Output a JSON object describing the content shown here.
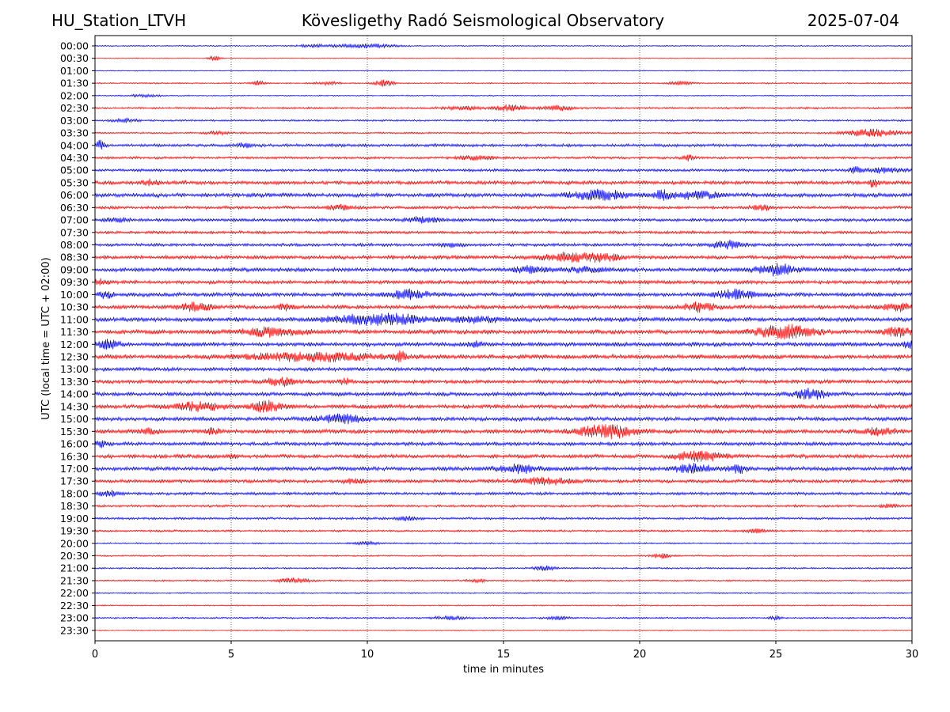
{
  "header": {
    "station": "HU_Station_LTVH",
    "title": "Kövesligethy Radó Seismological Observatory",
    "date": "2025-07-04"
  },
  "chart_data": {
    "type": "line",
    "subtype": "helicorder",
    "xlabel": "time in minutes",
    "ylabel": "UTC (local time = UTC + 02:00)",
    "xlim": [
      0,
      30
    ],
    "xticks": [
      0,
      5,
      10,
      15,
      20,
      25,
      30
    ],
    "vertical_gridlines": [
      5,
      10,
      15,
      20,
      25
    ],
    "grid": "vertical dotted",
    "colors": [
      "#0000ff",
      "#ff0000"
    ],
    "rows": [
      {
        "label": "00:00",
        "noise": 0.5,
        "bursts": [
          [
            10,
            1.5,
            2.5
          ],
          [
            8,
            1,
            1.5
          ]
        ]
      },
      {
        "label": "00:30",
        "noise": 0.3,
        "bursts": [
          [
            4.4,
            0.3,
            3
          ]
        ]
      },
      {
        "label": "01:00",
        "noise": 0.3,
        "bursts": []
      },
      {
        "label": "01:30",
        "noise": 0.6,
        "bursts": [
          [
            6,
            0.3,
            3
          ],
          [
            8.5,
            0.6,
            2
          ],
          [
            10.6,
            0.5,
            4
          ],
          [
            21.5,
            0.6,
            2
          ]
        ]
      },
      {
        "label": "02:00",
        "noise": 0.5,
        "bursts": [
          [
            1.8,
            0.8,
            1.5
          ]
        ]
      },
      {
        "label": "02:30",
        "noise": 1,
        "bursts": [
          [
            15.3,
            0.8,
            4
          ],
          [
            17,
            0.8,
            3
          ],
          [
            13.5,
            1,
            2
          ]
        ]
      },
      {
        "label": "03:00",
        "noise": 0.9,
        "bursts": [
          [
            1.1,
            0.6,
            2.5
          ]
        ]
      },
      {
        "label": "03:30",
        "noise": 0.9,
        "bursts": [
          [
            28.6,
            1.5,
            4.5
          ],
          [
            4.5,
            0.6,
            2
          ]
        ]
      },
      {
        "label": "04:00",
        "noise": 1.8,
        "bursts": [
          [
            0.2,
            0.2,
            6
          ],
          [
            5.5,
            0.3,
            3
          ]
        ]
      },
      {
        "label": "04:30",
        "noise": 1.3,
        "bursts": [
          [
            21.8,
            0.3,
            4
          ],
          [
            14,
            1,
            2.5
          ]
        ]
      },
      {
        "label": "05:00",
        "noise": 1.6,
        "bursts": [
          [
            27.9,
            0.3,
            4
          ],
          [
            29,
            1,
            3
          ]
        ]
      },
      {
        "label": "05:30",
        "noise": 2.2,
        "bursts": [
          [
            28.6,
            0.2,
            7
          ],
          [
            2,
            0.5,
            3
          ]
        ]
      },
      {
        "label": "06:00",
        "noise": 2.5,
        "bursts": [
          [
            18.5,
            1.5,
            5.5
          ],
          [
            20.8,
            0.3,
            5.5
          ],
          [
            22,
            1.5,
            4
          ]
        ]
      },
      {
        "label": "06:30",
        "noise": 1.8,
        "bursts": [
          [
            24.5,
            0.5,
            3
          ],
          [
            9,
            0.8,
            2.5
          ]
        ]
      },
      {
        "label": "07:00",
        "noise": 1.8,
        "bursts": [
          [
            0.8,
            0.6,
            3
          ],
          [
            12,
            1,
            3
          ]
        ]
      },
      {
        "label": "07:30",
        "noise": 1.7,
        "bursts": []
      },
      {
        "label": "08:00",
        "noise": 1.8,
        "bursts": [
          [
            23.2,
            0.8,
            5
          ],
          [
            13,
            0.5,
            2.5
          ]
        ]
      },
      {
        "label": "08:30",
        "noise": 2.2,
        "bursts": [
          [
            17.5,
            1.5,
            5
          ],
          [
            18.7,
            0.8,
            3.5
          ]
        ]
      },
      {
        "label": "09:00",
        "noise": 2.4,
        "bursts": [
          [
            25,
            1,
            7
          ],
          [
            16,
            1,
            3.5
          ],
          [
            18,
            1,
            3
          ]
        ]
      },
      {
        "label": "09:30",
        "noise": 2.2,
        "bursts": [
          [
            0.2,
            0.4,
            3.5
          ]
        ]
      },
      {
        "label": "10:00",
        "noise": 2.4,
        "bursts": [
          [
            11.5,
            1,
            5.5
          ],
          [
            23.5,
            1,
            5.5
          ],
          [
            0.4,
            0.4,
            3.5
          ]
        ]
      },
      {
        "label": "10:30",
        "noise": 2.4,
        "bursts": [
          [
            3.7,
            0.8,
            5
          ],
          [
            22.2,
            0.8,
            5.5
          ],
          [
            29.5,
            0.8,
            4.5
          ],
          [
            7,
            0.4,
            4
          ]
        ]
      },
      {
        "label": "11:00",
        "noise": 2.6,
        "bursts": [
          [
            11,
            1.5,
            6
          ],
          [
            9.3,
            1.5,
            4
          ],
          [
            14,
            1.5,
            3
          ]
        ]
      },
      {
        "label": "11:30",
        "noise": 2.7,
        "bursts": [
          [
            25.3,
            1.5,
            8
          ],
          [
            6.5,
            1.5,
            5
          ],
          [
            29.5,
            0.8,
            4.5
          ]
        ]
      },
      {
        "label": "12:00",
        "noise": 2.5,
        "bursts": [
          [
            0.5,
            0.6,
            5
          ],
          [
            14,
            0.5,
            3
          ],
          [
            29.9,
            0.3,
            4
          ]
        ]
      },
      {
        "label": "12:30",
        "noise": 2.7,
        "bursts": [
          [
            8,
            3.5,
            4.5
          ],
          [
            11.2,
            0.3,
            5
          ]
        ]
      },
      {
        "label": "13:00",
        "noise": 2.2,
        "bursts": []
      },
      {
        "label": "13:30",
        "noise": 2.2,
        "bursts": [
          [
            6.8,
            0.8,
            5
          ],
          [
            9.2,
            0.3,
            3.5
          ]
        ]
      },
      {
        "label": "14:00",
        "noise": 2.4,
        "bursts": [
          [
            26.3,
            0.8,
            6.5
          ]
        ]
      },
      {
        "label": "14:30",
        "noise": 2.6,
        "bursts": [
          [
            6.3,
            0.8,
            6
          ],
          [
            3.8,
            1.3,
            4.5
          ]
        ]
      },
      {
        "label": "15:00",
        "noise": 2.4,
        "bursts": [
          [
            9,
            1.2,
            5.5
          ]
        ]
      },
      {
        "label": "15:30",
        "noise": 2.5,
        "bursts": [
          [
            18.8,
            1.5,
            8
          ],
          [
            4.3,
            0.5,
            3.5
          ],
          [
            2,
            0.5,
            3
          ],
          [
            28.8,
            0.8,
            4.5
          ]
        ]
      },
      {
        "label": "16:00",
        "noise": 2.2,
        "bursts": [
          [
            0.2,
            0.3,
            3
          ]
        ]
      },
      {
        "label": "16:30",
        "noise": 2.3,
        "bursts": [
          [
            22.2,
            1.2,
            6
          ],
          [
            5,
            0.2,
            3
          ]
        ]
      },
      {
        "label": "17:00",
        "noise": 2.5,
        "bursts": [
          [
            15.5,
            1,
            5
          ],
          [
            22,
            1,
            5
          ],
          [
            23.6,
            0.5,
            5
          ]
        ]
      },
      {
        "label": "17:30",
        "noise": 2,
        "bursts": [
          [
            16.5,
            1.5,
            4
          ],
          [
            9.5,
            0.5,
            2.5
          ]
        ]
      },
      {
        "label": "18:00",
        "noise": 1.7,
        "bursts": [
          [
            0.5,
            0.5,
            3.5
          ]
        ]
      },
      {
        "label": "18:30",
        "noise": 1.3,
        "bursts": [
          [
            29.2,
            0.5,
            2.5
          ]
        ]
      },
      {
        "label": "19:00",
        "noise": 1.3,
        "bursts": [
          [
            11.5,
            0.5,
            2.5
          ]
        ]
      },
      {
        "label": "19:30",
        "noise": 1.1,
        "bursts": [
          [
            24.3,
            0.5,
            2.5
          ]
        ]
      },
      {
        "label": "20:00",
        "noise": 0.7,
        "bursts": [
          [
            10,
            0.6,
            2
          ]
        ]
      },
      {
        "label": "20:30",
        "noise": 0.7,
        "bursts": [
          [
            20.8,
            0.5,
            3
          ]
        ]
      },
      {
        "label": "21:00",
        "noise": 0.8,
        "bursts": [
          [
            16.5,
            0.6,
            3
          ]
        ]
      },
      {
        "label": "21:30",
        "noise": 0.8,
        "bursts": [
          [
            7.3,
            0.8,
            3
          ],
          [
            14,
            0.5,
            2
          ]
        ]
      },
      {
        "label": "22:00",
        "noise": 0.6,
        "bursts": []
      },
      {
        "label": "22:30",
        "noise": 0.5,
        "bursts": []
      },
      {
        "label": "23:00",
        "noise": 0.8,
        "bursts": [
          [
            13,
            0.8,
            2
          ],
          [
            17,
            0.6,
            2
          ],
          [
            25,
            0.3,
            2.5
          ]
        ]
      },
      {
        "label": "23:30",
        "noise": 0.3,
        "bursts": []
      }
    ]
  }
}
